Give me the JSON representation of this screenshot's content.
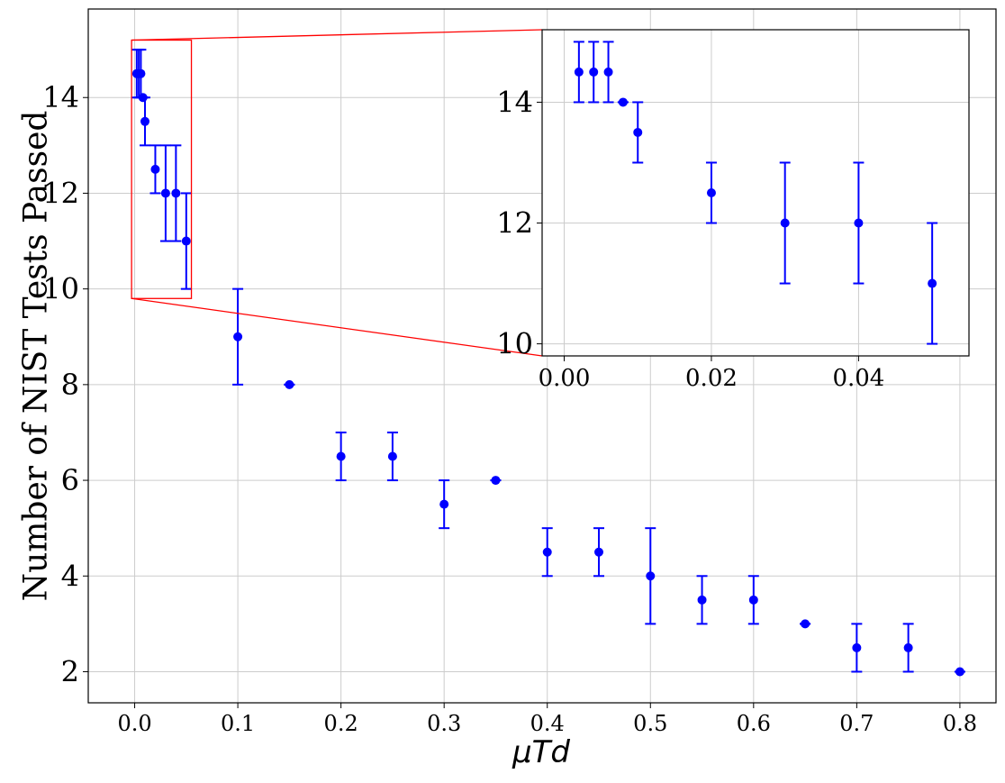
{
  "chart_data": {
    "type": "scatter",
    "title": "",
    "xlabel": "μTd",
    "ylabel": "Number of NIST Tests Passed",
    "xlim": [
      -0.045,
      0.835
    ],
    "ylim": [
      1.35,
      15.85
    ],
    "xticks": [
      "0.0",
      "0.1",
      "0.2",
      "0.3",
      "0.4",
      "0.5",
      "0.6",
      "0.7",
      "0.8"
    ],
    "yticks": [
      "2",
      "4",
      "6",
      "8",
      "10",
      "12",
      "14"
    ],
    "grid": true,
    "marker_color": "#0000ff",
    "series": [
      {
        "points": [
          {
            "x": 0.002,
            "y": 14.5,
            "ylo": 14.0,
            "yhi": 15.0
          },
          {
            "x": 0.004,
            "y": 14.5,
            "ylo": 14.0,
            "yhi": 15.0
          },
          {
            "x": 0.006,
            "y": 14.5,
            "ylo": 14.0,
            "yhi": 15.0
          },
          {
            "x": 0.008,
            "y": 14.0,
            "ylo": 14.0,
            "yhi": 14.0
          },
          {
            "x": 0.01,
            "y": 13.5,
            "ylo": 13.0,
            "yhi": 14.0
          },
          {
            "x": 0.02,
            "y": 12.5,
            "ylo": 12.0,
            "yhi": 13.0
          },
          {
            "x": 0.03,
            "y": 12.0,
            "ylo": 11.0,
            "yhi": 13.0
          },
          {
            "x": 0.04,
            "y": 12.0,
            "ylo": 11.0,
            "yhi": 13.0
          },
          {
            "x": 0.05,
            "y": 11.0,
            "ylo": 10.0,
            "yhi": 12.0
          },
          {
            "x": 0.1,
            "y": 9.0,
            "ylo": 8.0,
            "yhi": 10.0
          },
          {
            "x": 0.15,
            "y": 8.0,
            "ylo": 8.0,
            "yhi": 8.0
          },
          {
            "x": 0.2,
            "y": 6.5,
            "ylo": 6.0,
            "yhi": 7.0
          },
          {
            "x": 0.25,
            "y": 6.5,
            "ylo": 6.0,
            "yhi": 7.0
          },
          {
            "x": 0.3,
            "y": 5.5,
            "ylo": 5.0,
            "yhi": 6.0
          },
          {
            "x": 0.35,
            "y": 6.0,
            "ylo": 6.0,
            "yhi": 6.0
          },
          {
            "x": 0.4,
            "y": 4.5,
            "ylo": 4.0,
            "yhi": 5.0
          },
          {
            "x": 0.45,
            "y": 4.5,
            "ylo": 4.0,
            "yhi": 5.0
          },
          {
            "x": 0.5,
            "y": 4.0,
            "ylo": 3.0,
            "yhi": 5.0
          },
          {
            "x": 0.55,
            "y": 3.5,
            "ylo": 3.0,
            "yhi": 4.0
          },
          {
            "x": 0.6,
            "y": 3.5,
            "ylo": 3.0,
            "yhi": 4.0
          },
          {
            "x": 0.65,
            "y": 3.0,
            "ylo": 3.0,
            "yhi": 3.0
          },
          {
            "x": 0.7,
            "y": 2.5,
            "ylo": 2.0,
            "yhi": 3.0
          },
          {
            "x": 0.75,
            "y": 2.5,
            "ylo": 2.0,
            "yhi": 3.0
          },
          {
            "x": 0.8,
            "y": 2.0,
            "ylo": 2.0,
            "yhi": 2.0
          }
        ]
      }
    ],
    "inset": {
      "xlim": [
        -0.003,
        0.055
      ],
      "ylim": [
        9.8,
        15.2
      ],
      "xticks": [
        "0.00",
        "0.02",
        "0.04"
      ],
      "yticks": [
        "10",
        "12",
        "14"
      ],
      "zoom_box_color": "#ff0000",
      "placement": "top-right"
    }
  }
}
